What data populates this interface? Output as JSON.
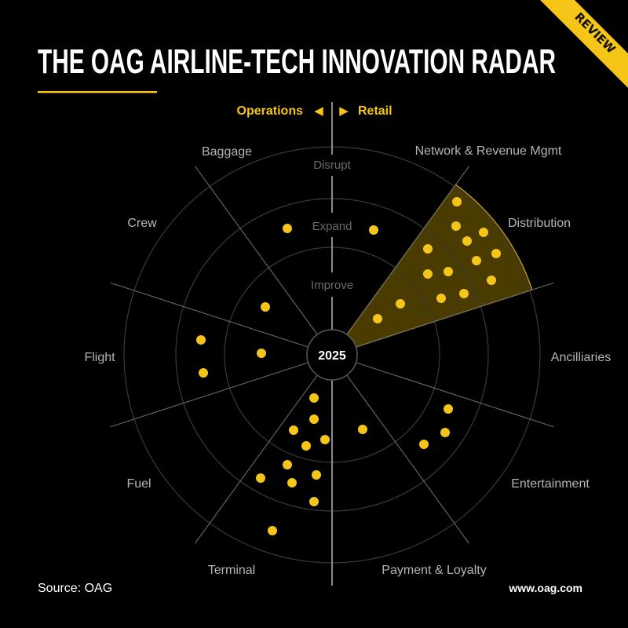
{
  "header": {
    "title": "THE OAG AIRLINE-TECH INNOVATION RADAR",
    "ribbon": "REVIEW"
  },
  "direction": {
    "left_label": "Operations",
    "left_arrow": "◀",
    "right_arrow": "▶",
    "right_label": "Retail"
  },
  "radar": {
    "center_label": "2025",
    "stages": [
      "Improve",
      "Expand",
      "Disrupt"
    ],
    "categories": [
      "Network & Revenue Mgmt",
      "Distribution",
      "Ancilliaries",
      "Entertainment",
      "Payment & Loyalty",
      "Terminal",
      "Fuel",
      "Flight",
      "Crew",
      "Baggage"
    ],
    "highlighted_category": "Distribution",
    "dots": [
      {
        "category": "Baggage",
        "stage": "Expand"
      },
      {
        "category": "Network & Revenue Mgmt",
        "stage": "Expand"
      },
      {
        "category": "Distribution",
        "stage": "Disrupt"
      },
      {
        "category": "Distribution",
        "stage": "Disrupt"
      },
      {
        "category": "Distribution",
        "stage": "Disrupt"
      },
      {
        "category": "Distribution",
        "stage": "Disrupt"
      },
      {
        "category": "Distribution",
        "stage": "Expand"
      },
      {
        "category": "Distribution",
        "stage": "Disrupt"
      },
      {
        "category": "Distribution",
        "stage": "Disrupt"
      },
      {
        "category": "Distribution",
        "stage": "Expand"
      },
      {
        "category": "Distribution",
        "stage": "Expand"
      },
      {
        "category": "Distribution",
        "stage": "Disrupt"
      },
      {
        "category": "Distribution",
        "stage": "Expand"
      },
      {
        "category": "Distribution",
        "stage": "Expand"
      },
      {
        "category": "Distribution",
        "stage": "Improve"
      },
      {
        "category": "Distribution",
        "stage": "Improve"
      },
      {
        "category": "Crew",
        "stage": "Improve"
      },
      {
        "category": "Flight",
        "stage": "Expand"
      },
      {
        "category": "Flight",
        "stage": "Expand"
      },
      {
        "category": "Flight",
        "stage": "Improve"
      },
      {
        "category": "Terminal",
        "stage": "Improve"
      },
      {
        "category": "Terminal",
        "stage": "Improve"
      },
      {
        "category": "Terminal",
        "stage": "Improve"
      },
      {
        "category": "Terminal",
        "stage": "Improve"
      },
      {
        "category": "Terminal",
        "stage": "Improve"
      },
      {
        "category": "Terminal",
        "stage": "Expand"
      },
      {
        "category": "Terminal",
        "stage": "Expand"
      },
      {
        "category": "Terminal",
        "stage": "Expand"
      },
      {
        "category": "Terminal",
        "stage": "Expand"
      },
      {
        "category": "Terminal",
        "stage": "Expand"
      },
      {
        "category": "Terminal",
        "stage": "Disrupt"
      },
      {
        "category": "Payment & Loyalty",
        "stage": "Improve"
      },
      {
        "category": "Entertainment",
        "stage": "Expand"
      },
      {
        "category": "Entertainment",
        "stage": "Expand"
      },
      {
        "category": "Entertainment",
        "stage": "Expand"
      }
    ]
  },
  "footer": {
    "source": "Source: OAG",
    "website": "www.oag.com"
  },
  "colors": {
    "background": "#000000",
    "accent": "#f5c518",
    "highlight_fill": "#4a3b00",
    "text": "#ffffff",
    "muted_text": "#b5b5b5"
  }
}
